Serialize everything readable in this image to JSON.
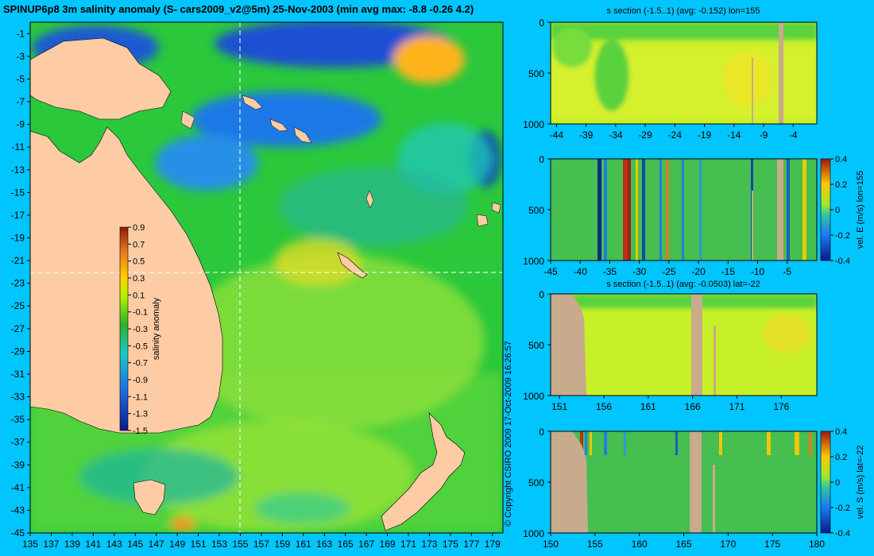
{
  "title": "SPINUP6p8 3m salinity anomaly (S- cars2009_v2@5m) 25-Nov-2003 (min avg max: -8.8 -0.26 4.2)",
  "copyright": "© Copyright CSIRO 2009 17-Oct-2009 16:26:57",
  "colors": {
    "background": "#00c5ff",
    "land": "#fdcca5",
    "section_land": "#c8aa8c"
  },
  "chart_data": [
    {
      "type": "heatmap",
      "name_hint": "map",
      "xlabel": "",
      "ylabel": "",
      "xlim": [
        135,
        180
      ],
      "ylim": [
        -45,
        0
      ],
      "x_ticks": [
        135,
        137,
        139,
        141,
        143,
        145,
        147,
        149,
        151,
        153,
        155,
        157,
        159,
        161,
        163,
        165,
        167,
        169,
        171,
        173,
        175,
        177,
        179
      ],
      "y_ticks": [
        -1,
        -3,
        -5,
        -7,
        -9,
        -11,
        -13,
        -15,
        -17,
        -19,
        -21,
        -23,
        -25,
        -27,
        -29,
        -31,
        -33,
        -35,
        -37,
        -39,
        -41,
        -43,
        -45
      ],
      "section_lon": 155,
      "section_lat": -22,
      "colorbar": {
        "label": "salinity anomaly",
        "range": [
          -1.5,
          0.9
        ],
        "ticks": [
          "0.9",
          "0.7",
          "0.5",
          "0.3",
          "0.1",
          "-0.1",
          "-0.3",
          "-0.5",
          "-0.7",
          "-0.9",
          "-1.1",
          "-1.3",
          "-1.5"
        ]
      }
    },
    {
      "type": "heatmap",
      "title": "s section (-1.5..1) (avg: -0.152) lon=155",
      "xlim": [
        -45,
        0
      ],
      "ylim": [
        1000,
        0
      ],
      "x_ticks": [
        -44,
        -39,
        -34,
        -29,
        -24,
        -19,
        -14,
        -9,
        -4
      ],
      "y_ticks": [
        0,
        500,
        1000
      ],
      "land_columns": [
        -5.3
      ]
    },
    {
      "type": "heatmap",
      "title": "",
      "ylabel": "vel. E (m/s) lon=155",
      "xlim": [
        -45,
        0
      ],
      "ylim": [
        1000,
        0
      ],
      "x_ticks": [
        -45,
        -40,
        -35,
        -30,
        -25,
        -20,
        -15,
        -10,
        -5
      ],
      "y_ticks": [
        0,
        500,
        1000
      ],
      "colorbar": {
        "range": [
          -0.4,
          0.4
        ],
        "ticks": [
          "0.4",
          "0.2",
          "0",
          "-0.2",
          "-0.4"
        ]
      }
    },
    {
      "type": "heatmap",
      "title": "s section (-1.5..1) (avg: -0.0503) lat=-22",
      "xlim": [
        150,
        180
      ],
      "ylim": [
        1000,
        0
      ],
      "x_ticks": [
        151,
        156,
        161,
        166,
        171,
        176
      ],
      "y_ticks": [
        0,
        500,
        1000
      ]
    },
    {
      "type": "heatmap",
      "title": "",
      "ylabel": "vel. S (m/s) lat=-22",
      "xlim": [
        150,
        180
      ],
      "ylim": [
        1000,
        0
      ],
      "x_ticks": [
        150,
        155,
        160,
        165,
        170,
        175,
        180
      ],
      "y_ticks": [
        0,
        500,
        1000
      ],
      "colorbar": {
        "range": [
          -0.4,
          0.4
        ],
        "ticks": [
          "0.4",
          "0.2",
          "0",
          "-0.2",
          "-0.4"
        ]
      }
    }
  ]
}
